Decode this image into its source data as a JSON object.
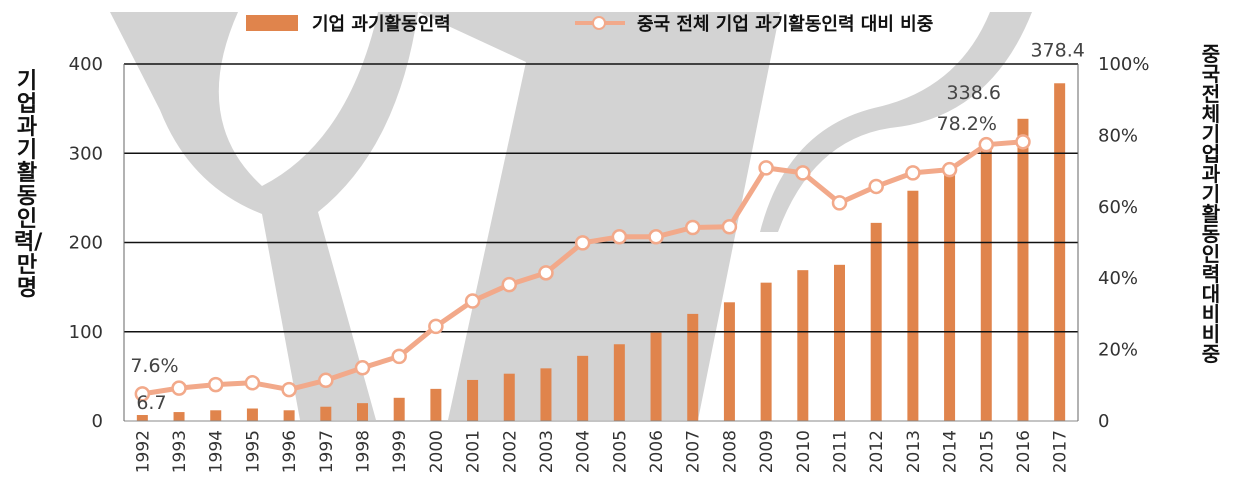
{
  "legend": {
    "bar_label": "기업 과기활동인력",
    "line_label": "중국 전체 기업 과기활동인력 대비 비중"
  },
  "axis_titles": {
    "left": "기업 과기활동인력/만명",
    "right": "중국 전체 기업 과기활동인력 대비 비중"
  },
  "colors": {
    "bar": "#E0844C",
    "line": "#F2A98A",
    "watermark": "#D3D3D3",
    "grid": "#111111"
  },
  "chart_data": {
    "type": "bar",
    "categories": [
      "1992",
      "1993",
      "1994",
      "1995",
      "1996",
      "1997",
      "1998",
      "1999",
      "2000",
      "2001",
      "2002",
      "2003",
      "2004",
      "2005",
      "2006",
      "2007",
      "2008",
      "2009",
      "2010",
      "2011",
      "2012",
      "2013",
      "2014",
      "2015",
      "2016",
      "2017"
    ],
    "series": [
      {
        "name": "기업 과기활동인력",
        "type": "bar",
        "axis": "left",
        "values": [
          6.7,
          10,
          12,
          14,
          12,
          16,
          20,
          26,
          36,
          46,
          53,
          59,
          73,
          86,
          99,
          120,
          133,
          155,
          169,
          175,
          222,
          258,
          281,
          310,
          338.6,
          378.4
        ]
      },
      {
        "name": "중국 전체 기업 과기활동인력 대비 비중",
        "type": "line",
        "axis": "right",
        "values": [
          7.6,
          9.2,
          10.2,
          10.7,
          8.8,
          11.4,
          14.9,
          18.1,
          26.5,
          33.6,
          38.2,
          41.5,
          49.9,
          51.6,
          51.6,
          54.2,
          54.4,
          70.9,
          69.5,
          61.1,
          65.7,
          69.5,
          70.4,
          77.4,
          78.2,
          null
        ]
      }
    ],
    "y_left": {
      "ylim": [
        0,
        400
      ],
      "ticks": [
        "0",
        "100",
        "200",
        "300",
        "400"
      ]
    },
    "y_right": {
      "ylim": [
        0,
        100
      ],
      "ticks": [
        "0",
        "20%",
        "40%",
        "60%",
        "80%",
        "100%"
      ]
    },
    "data_labels": [
      {
        "series": 0,
        "index": 0,
        "text": "6.7"
      },
      {
        "series": 1,
        "index": 0,
        "text": "7.6%"
      },
      {
        "series": 1,
        "index": 24,
        "text": "78.2%"
      },
      {
        "series": 0,
        "index": 24,
        "text": "338.6"
      },
      {
        "series": 0,
        "index": 25,
        "text": "378.4"
      }
    ],
    "grid": true,
    "legend_position": "top"
  }
}
